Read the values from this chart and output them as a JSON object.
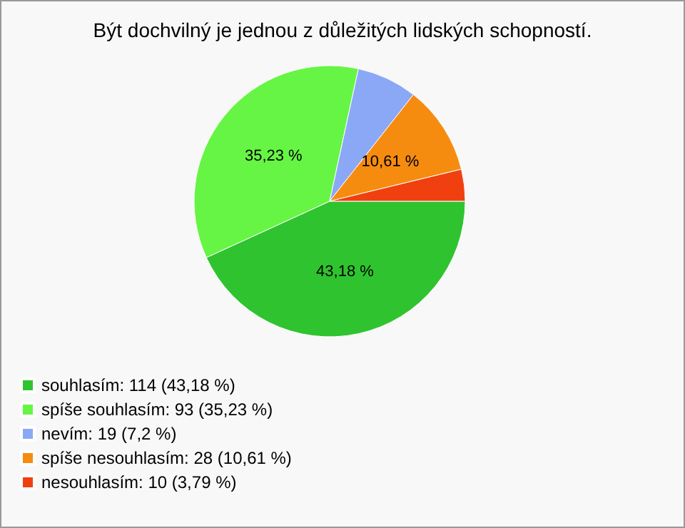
{
  "chart_data": {
    "type": "pie",
    "title": "Být dochvilný je jednou z důležitých lidských schopností.",
    "categories": [
      "souhlasím: 114 (43,18 %)",
      "spíše souhlasím: 93 (35,23 %)",
      "nevím: 19 (7,2 %)",
      "spíše nesouhlasím: 28 (10,61 %)",
      "nesouhlasím: 10 (3,79 %)"
    ],
    "values": [
      43.18,
      35.23,
      7.2,
      10.61,
      3.79
    ],
    "colors": [
      "#2fc42f",
      "#66f544",
      "#8aa8f5",
      "#f58c10",
      "#f04010"
    ],
    "value_labels": [
      "43,18 %",
      "35,23 %",
      null,
      "10,61 %",
      null
    ],
    "legend": "bottom left"
  }
}
